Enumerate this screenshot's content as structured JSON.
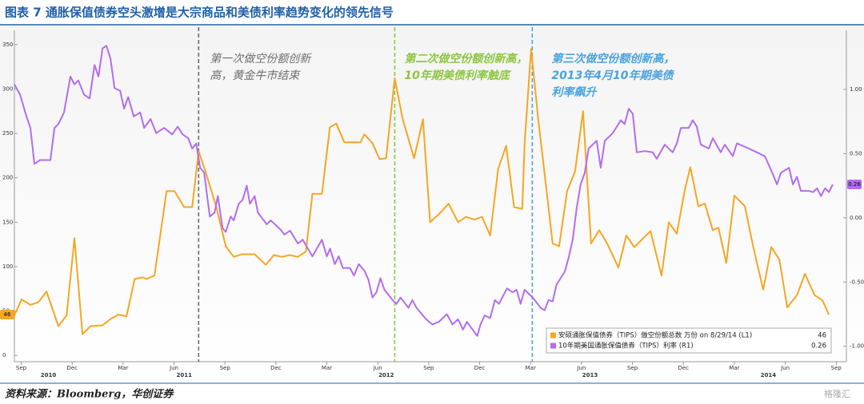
{
  "chart_data": {
    "type": "line",
    "title": "图表 7  通胀保值债券空头激增是大宗商品和美债利率趋势变化的领先信号",
    "source": "资料来源：Bloomberg，华创证券",
    "watermark": "格隆汇",
    "xlim": [
      7.6,
      56.6
    ],
    "xticks": [
      {
        "value": 8,
        "label": "Sep"
      },
      {
        "value": 11,
        "label": "Dec"
      },
      {
        "value": 14,
        "label": "Mar"
      },
      {
        "value": 17,
        "label": "Jun"
      },
      {
        "value": 20,
        "label": "Sep"
      },
      {
        "value": 23,
        "label": "Dec"
      },
      {
        "value": 26,
        "label": "Mar"
      },
      {
        "value": 29,
        "label": "Jun"
      },
      {
        "value": 32,
        "label": "Sep"
      },
      {
        "value": 35,
        "label": "Dec"
      },
      {
        "value": 38,
        "label": "Mar"
      },
      {
        "value": 41,
        "label": "Jun"
      },
      {
        "value": 44,
        "label": "Sep"
      },
      {
        "value": 47,
        "label": "Dec"
      },
      {
        "value": 50,
        "label": "Mar"
      },
      {
        "value": 53,
        "label": "Jun"
      },
      {
        "value": 56,
        "label": "Sep"
      }
    ],
    "year_labels": [
      {
        "value": 9.6,
        "label": "2010"
      },
      {
        "value": 17.6,
        "label": "2011"
      },
      {
        "value": 29.5,
        "label": "2012"
      },
      {
        "value": 41.5,
        "label": "2013"
      },
      {
        "value": 52,
        "label": "2014"
      }
    ],
    "ylim": [
      -7,
      366
    ],
    "yticks": [
      0,
      50,
      100,
      150,
      200,
      250,
      300,
      350
    ],
    "y2lim": [
      -1.12,
      1.46
    ],
    "y2ticks": [
      {
        "value": 1,
        "label": "1.00"
      },
      {
        "value": 0.5,
        "label": "0.50"
      },
      {
        "value": 0,
        "label": "0.00"
      },
      {
        "value": -0.5,
        "label": "-0.50"
      },
      {
        "value": -1,
        "label": "-1.00"
      }
    ],
    "legend": "lower right",
    "annotations": [
      {
        "x": 18.45,
        "color": "#6d6d6d",
        "lines": [
          "第一次做空份额创新",
          "高，黄金牛市结束"
        ]
      },
      {
        "x": 30.0,
        "color": "#8dc63f",
        "lines": [
          "第二次做空份额创新高，",
          "10年期美债利率触底"
        ]
      },
      {
        "x": 38.1,
        "color": "#4aa3df",
        "lines": [
          "第三次做空份额创新高，",
          "2013年4月10年期美债",
          "利率飙升"
        ]
      }
    ],
    "series": [
      {
        "name": "安硕通胀保值债券（TIPS）做空份额总数 万份 on 8/29/14 (L1)",
        "color": "#f5a623",
        "axis": "y",
        "x": [
          7.6,
          8.02,
          8.54,
          9.02,
          9.49,
          10.19,
          10.67,
          11.14,
          11.61,
          12.08,
          12.79,
          13.26,
          13.73,
          14.2,
          14.68,
          15.15,
          15.38,
          15.85,
          16.56,
          17.03,
          17.6,
          18.07,
          18.45,
          18.92,
          19.49,
          20.05,
          20.52,
          21.0,
          21.75,
          22.41,
          22.88,
          23.35,
          23.83,
          24.3,
          24.77,
          25.15,
          25.71,
          26.18,
          26.56,
          27.03,
          27.51,
          27.98,
          28.21,
          28.69,
          29.11,
          29.49,
          30.0,
          30.47,
          31.14,
          31.66,
          32.08,
          32.6,
          33.17,
          33.73,
          34.2,
          34.68,
          35.15,
          35.62,
          36.09,
          36.56,
          37.03,
          37.51,
          37.65,
          38.03,
          38.45,
          38.83,
          39.3,
          39.68,
          40.15,
          40.62,
          41.09,
          41.56,
          42.04,
          42.51,
          43.17,
          43.64,
          44.11,
          44.58,
          45.06,
          45.71,
          46.14,
          46.61,
          47.08,
          47.41,
          47.88,
          48.26,
          48.73,
          49.06,
          49.53,
          50.0,
          50.62,
          51.09,
          51.7,
          52.18,
          52.65,
          53.12,
          53.69,
          54.16,
          54.72,
          55.19,
          55.57
        ],
        "values": [
          45,
          63,
          57,
          60,
          72,
          33,
          45,
          132,
          24,
          33,
          34,
          41,
          46,
          44,
          86,
          88,
          86,
          90,
          185,
          185,
          167,
          167,
          230,
          203,
          167,
          123,
          111,
          114,
          114,
          102,
          113,
          111,
          113,
          111,
          117,
          182,
          182,
          257,
          261,
          240,
          240,
          240,
          249,
          239,
          221,
          222,
          312,
          266,
          222,
          266,
          150,
          159,
          171,
          150,
          156,
          153,
          156,
          135,
          210,
          236,
          167,
          165,
          239,
          345,
          266,
          204,
          126,
          123,
          185,
          207,
          275,
          126,
          141,
          126,
          99,
          135,
          122,
          131,
          140,
          90,
          150,
          137,
          186,
          212,
          168,
          171,
          141,
          144,
          104,
          180,
          168,
          124,
          74,
          122,
          108,
          54,
          68,
          92,
          68,
          62,
          46
        ]
      },
      {
        "name": "10年期美国通胀保值债券（TIPS）利率 (R1)",
        "color": "#b36cf0",
        "axis": "y2",
        "x": [
          7.6,
          7.93,
          8.31,
          8.54,
          8.78,
          9.11,
          9.72,
          9.96,
          10.19,
          10.52,
          10.9,
          11.14,
          11.37,
          11.7,
          12.03,
          12.32,
          12.55,
          12.79,
          13.02,
          13.26,
          13.5,
          13.83,
          14.06,
          14.3,
          14.63,
          15.01,
          15.24,
          15.62,
          15.95,
          16.42,
          16.89,
          17.22,
          17.51,
          17.84,
          18.07,
          18.31,
          18.54,
          18.78,
          18.92,
          19.11,
          19.39,
          19.58,
          19.86,
          20.05,
          20.34,
          20.52,
          20.81,
          21.04,
          21.28,
          21.47,
          21.75,
          21.94,
          22.46,
          22.7,
          23.26,
          23.5,
          23.83,
          24.3,
          24.58,
          25.15,
          25.71,
          26.0,
          26.19,
          26.47,
          26.7,
          26.94,
          27.36,
          27.6,
          27.88,
          28.21,
          28.45,
          28.69,
          28.92,
          29.16,
          29.39,
          29.87,
          30.1,
          30.34,
          30.81,
          31.04,
          31.28,
          31.85,
          32.22,
          32.6,
          33.07,
          33.4,
          33.73,
          34.02,
          34.25,
          34.86,
          35.05,
          35.29,
          35.62,
          35.9,
          36.14,
          36.61,
          36.94,
          37.18,
          37.41,
          37.65,
          38.12,
          38.59,
          38.83,
          39.06,
          39.3,
          39.53,
          40.01,
          40.24,
          40.48,
          40.71,
          40.95,
          41.19,
          41.42,
          41.89,
          42.13,
          42.37,
          42.84,
          43.31,
          43.54,
          43.78,
          44.02,
          44.25,
          44.72,
          45.2,
          45.43,
          45.9,
          46.37,
          46.61,
          46.85,
          47.32,
          47.55,
          47.79,
          48.03,
          48.5,
          48.73,
          49.2,
          49.44,
          49.91,
          50.15,
          50.85,
          51.33,
          51.8,
          52.27,
          52.51,
          52.74,
          53.22,
          53.45,
          53.69,
          53.92,
          54.39,
          54.63,
          54.87,
          55.1,
          55.34,
          55.57,
          55.8
        ],
        "values": [
          1.04,
          0.96,
          0.79,
          0.7,
          0.42,
          0.45,
          0.45,
          0.7,
          0.73,
          0.82,
          1.1,
          1.04,
          1.07,
          0.96,
          0.93,
          1.19,
          1.1,
          1.32,
          1.34,
          1.24,
          1.01,
          0.99,
          0.85,
          0.94,
          0.79,
          0.82,
          0.7,
          0.77,
          0.66,
          0.7,
          0.65,
          0.71,
          0.65,
          0.62,
          0.54,
          0.58,
          0.39,
          0.35,
          0.2,
          0.01,
          0.04,
          0.17,
          -0.08,
          -0.11,
          0.01,
          -0.02,
          0.11,
          0.14,
          0.25,
          0.11,
          0.17,
          0.04,
          -0.05,
          -0.02,
          -0.09,
          -0.13,
          -0.1,
          -0.2,
          -0.17,
          -0.3,
          -0.17,
          -0.3,
          -0.24,
          -0.36,
          -0.3,
          -0.39,
          -0.39,
          -0.45,
          -0.36,
          -0.41,
          -0.48,
          -0.62,
          -0.58,
          -0.47,
          -0.56,
          -0.64,
          -0.67,
          -0.62,
          -0.7,
          -0.64,
          -0.7,
          -0.79,
          -0.83,
          -0.81,
          -0.75,
          -0.83,
          -0.79,
          -0.87,
          -0.81,
          -0.92,
          -0.83,
          -0.76,
          -0.78,
          -0.64,
          -0.67,
          -0.55,
          -0.58,
          -0.56,
          -0.67,
          -0.56,
          -0.62,
          -0.7,
          -0.72,
          -0.64,
          -0.65,
          -0.52,
          -0.42,
          -0.31,
          -0.17,
          0.07,
          0.26,
          0.35,
          0.54,
          0.6,
          0.39,
          0.6,
          0.66,
          0.76,
          0.73,
          0.85,
          0.81,
          0.51,
          0.52,
          0.51,
          0.46,
          0.57,
          0.51,
          0.58,
          0.7,
          0.7,
          0.76,
          0.71,
          0.57,
          0.54,
          0.62,
          0.51,
          0.57,
          0.48,
          0.58,
          0.54,
          0.51,
          0.48,
          0.34,
          0.26,
          0.35,
          0.39,
          0.26,
          0.32,
          0.21,
          0.21,
          0.2,
          0.23,
          0.17,
          0.23,
          0.2,
          0.26
        ]
      }
    ]
  }
}
